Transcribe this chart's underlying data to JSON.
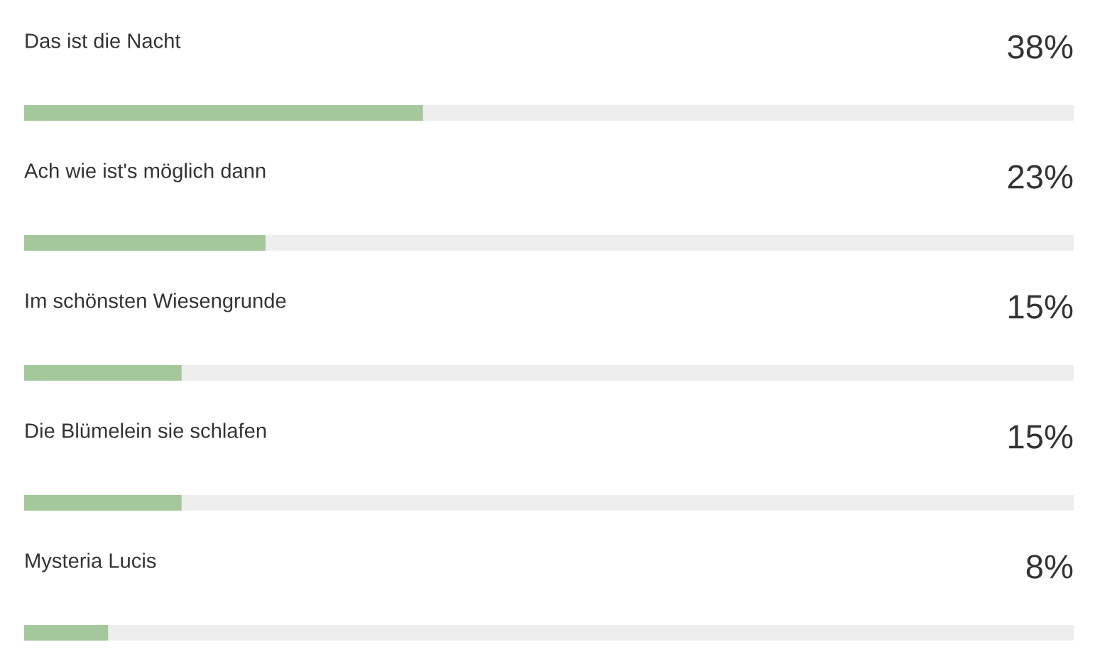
{
  "chart_data": {
    "type": "bar",
    "orientation": "horizontal",
    "categories": [
      "Das ist die Nacht",
      "Ach wie ist's möglich dann",
      "Im schönsten Wiesengrunde",
      "Die Blümelein sie schlafen",
      "Mysteria Lucis"
    ],
    "values": [
      38,
      23,
      15,
      15,
      8
    ],
    "value_labels": [
      "38%",
      "23%",
      "15%",
      "15%",
      "8%"
    ],
    "color": "#a4c89c",
    "xlim": [
      0,
      100
    ],
    "tick_labels": "y"
  }
}
